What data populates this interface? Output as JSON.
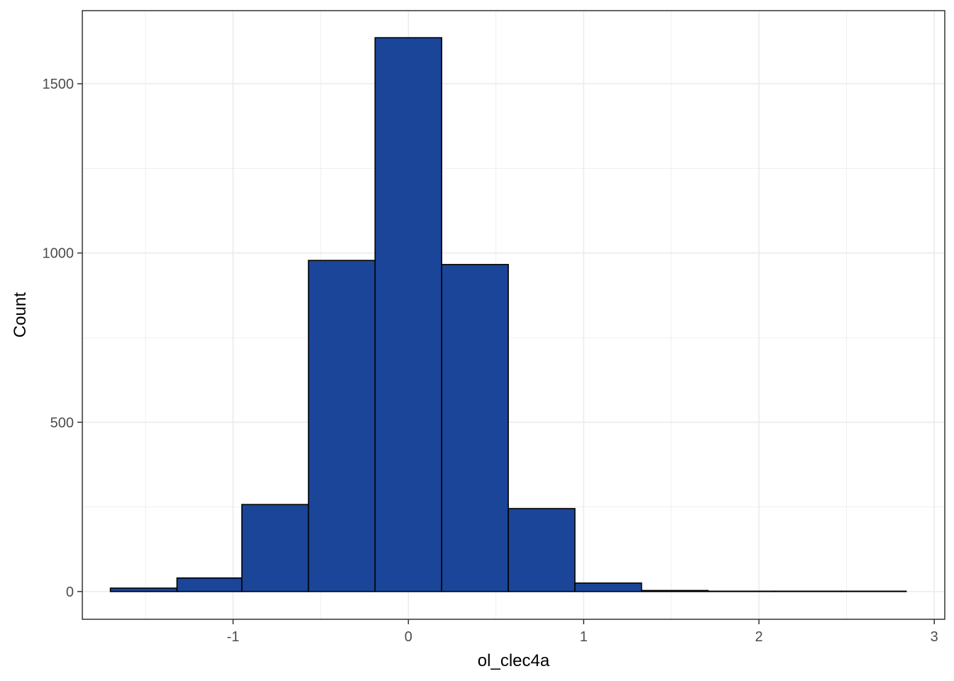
{
  "chart_data": {
    "type": "bar",
    "subtype": "histogram",
    "title": "",
    "xlabel": "ol_clec4a",
    "ylabel": "Count",
    "xlim": [
      -1.86,
      3.06
    ],
    "ylim": [
      -82,
      1716
    ],
    "x_ticks": [
      -1,
      0,
      1,
      2,
      3
    ],
    "x_tick_labels": [
      "-1",
      "0",
      "1",
      "2",
      "3"
    ],
    "y_ticks": [
      0,
      500,
      1000,
      1500
    ],
    "y_tick_labels": [
      "0",
      "500",
      "1000",
      "1500"
    ],
    "x_minor_gridlines": [
      -1.5,
      -0.5,
      0.5,
      1.5,
      2.5
    ],
    "y_minor_gridlines": [
      250,
      750,
      1250
    ],
    "grid": true,
    "legend": "none",
    "bins": [
      {
        "x0": -1.7,
        "x1": -1.32,
        "count": 10
      },
      {
        "x0": -1.32,
        "x1": -0.95,
        "count": 40
      },
      {
        "x0": -0.95,
        "x1": -0.57,
        "count": 257
      },
      {
        "x0": -0.57,
        "x1": -0.19,
        "count": 978
      },
      {
        "x0": -0.19,
        "x1": 0.19,
        "count": 1636
      },
      {
        "x0": 0.19,
        "x1": 0.57,
        "count": 966
      },
      {
        "x0": 0.57,
        "x1": 0.95,
        "count": 245
      },
      {
        "x0": 0.95,
        "x1": 1.33,
        "count": 25
      },
      {
        "x0": 1.33,
        "x1": 1.71,
        "count": 3
      },
      {
        "x0": 1.71,
        "x1": 2.09,
        "count": 1
      },
      {
        "x0": 2.09,
        "x1": 2.47,
        "count": 1
      },
      {
        "x0": 2.47,
        "x1": 2.84,
        "count": 1
      }
    ],
    "colors": {
      "bar_fill": "#1a4599",
      "bar_stroke": "#000000",
      "grid": "#ebebeb",
      "panel_border": "#333333",
      "tick_text": "#4d4d4d",
      "axis_title": "#000000"
    }
  }
}
